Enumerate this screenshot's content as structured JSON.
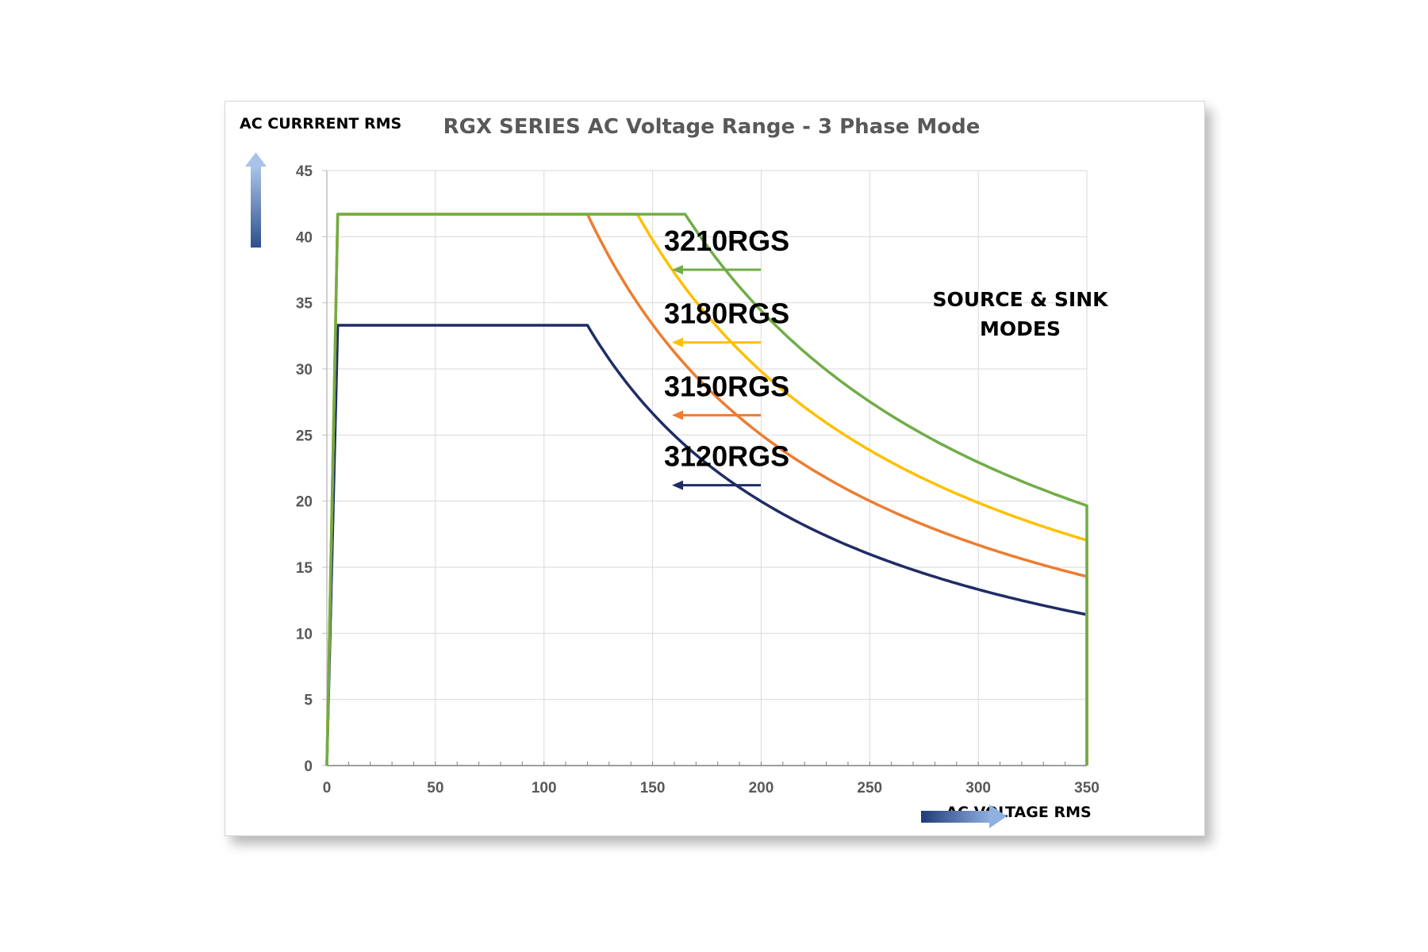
{
  "chart_data": {
    "type": "line",
    "title": "RGX SERIES AC Voltage Range - 3 Phase Mode",
    "ylabel": "AC CURRRENT RMS",
    "xlabel": "AC VOLTAGE RMS",
    "xlim": [
      0,
      350
    ],
    "ylim": [
      0,
      45
    ],
    "x_ticks": [
      "0",
      "50",
      "100",
      "150",
      "200",
      "250",
      "300",
      "350"
    ],
    "y_ticks": [
      "0",
      "5",
      "10",
      "15",
      "20",
      "25",
      "30",
      "35",
      "40",
      "45"
    ],
    "grid": true,
    "note_line1": "SOURCE & SINK",
    "note_line2": "MODES",
    "series": [
      {
        "name": "3210RGS",
        "color": "#70ad47",
        "imax": 41.7,
        "knee": 165,
        "vmax": 350,
        "label_y": 37.5
      },
      {
        "name": "3180RGS",
        "color": "#ffc000",
        "imax": 41.7,
        "knee": 143,
        "vmax": 350,
        "label_y": 32.0
      },
      {
        "name": "3150RGS",
        "color": "#ed7d31",
        "imax": 41.7,
        "knee": 120,
        "vmax": 350,
        "label_y": 26.5
      },
      {
        "name": "3120RGS",
        "color": "#1f2d66",
        "imax": 33.3,
        "knee": 120,
        "vmax": 350,
        "label_y": 21.2
      }
    ]
  }
}
